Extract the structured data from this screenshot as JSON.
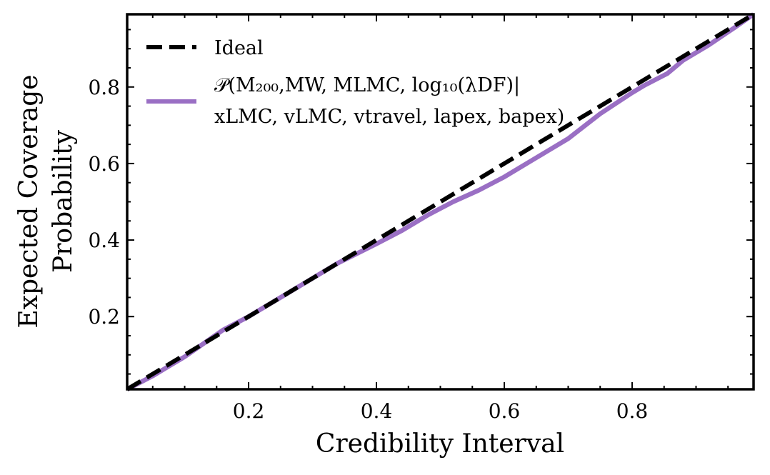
{
  "colors": {
    "ideal": "#000000",
    "posterior": "#9a6fc4",
    "axis": "#000000"
  },
  "chart_data": {
    "type": "line",
    "xlabel": "Credibility Interval",
    "ylabel_lines": [
      "Expected Coverage",
      "Probability"
    ],
    "xlim": [
      0.01,
      0.99
    ],
    "ylim": [
      0.01,
      0.99
    ],
    "xticks": [
      0.2,
      0.4,
      0.6,
      0.8
    ],
    "yticks": [
      0.2,
      0.4,
      0.6,
      0.8
    ],
    "xtick_labels": [
      "0.2",
      "0.4",
      "0.6",
      "0.8"
    ],
    "ytick_labels": [
      "0.2",
      "0.4",
      "0.6",
      "0.8"
    ],
    "grid": false,
    "legend_position": "top-left",
    "series": [
      {
        "name": "Ideal",
        "style": "dashed",
        "x": [
          0.01,
          0.99
        ],
        "y": [
          0.01,
          0.99
        ]
      },
      {
        "name_lines": [
          "𝒫(M₂₀₀,MW, MLMC, log₁₀(λDF)|",
          "xLMC, vLMC, vtravel, lapex, bapex)"
        ],
        "style": "solid",
        "x": [
          0.01,
          0.05,
          0.07,
          0.1,
          0.13,
          0.16,
          0.2,
          0.25,
          0.3,
          0.34,
          0.4,
          0.44,
          0.48,
          0.52,
          0.56,
          0.6,
          0.65,
          0.7,
          0.75,
          0.8,
          0.82,
          0.855,
          0.88,
          0.92,
          0.96,
          0.99
        ],
        "y": [
          0.01,
          0.045,
          0.065,
          0.095,
          0.13,
          0.165,
          0.2,
          0.25,
          0.3,
          0.34,
          0.39,
          0.425,
          0.465,
          0.5,
          0.53,
          0.565,
          0.615,
          0.665,
          0.73,
          0.785,
          0.805,
          0.835,
          0.87,
          0.91,
          0.955,
          0.99
        ]
      }
    ]
  }
}
